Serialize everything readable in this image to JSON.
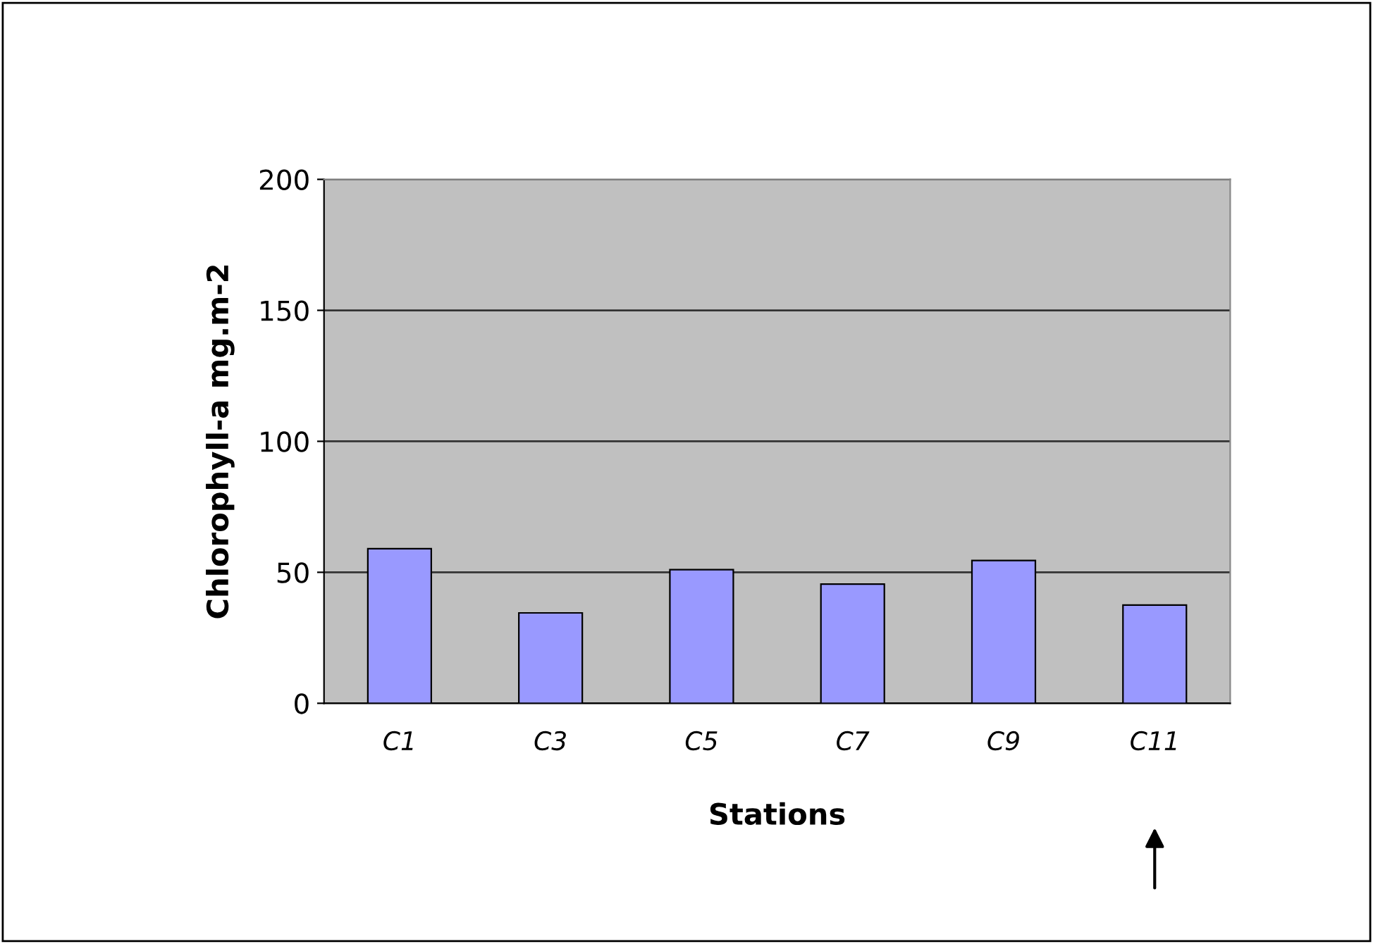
{
  "chart_data": {
    "type": "bar",
    "xlabel": "Stations",
    "ylabel": "Chlorophyll-a mg.m-2",
    "categories": [
      "C1",
      "C3",
      "C5",
      "C7",
      "C9",
      "C11"
    ],
    "values": [
      59,
      34.5,
      51,
      45.5,
      54.5,
      37.5
    ],
    "color": "#9999ff",
    "ylim": [
      0,
      200
    ],
    "yticks": [
      0,
      50,
      100,
      150,
      200
    ],
    "grid": "y",
    "legend": false
  }
}
